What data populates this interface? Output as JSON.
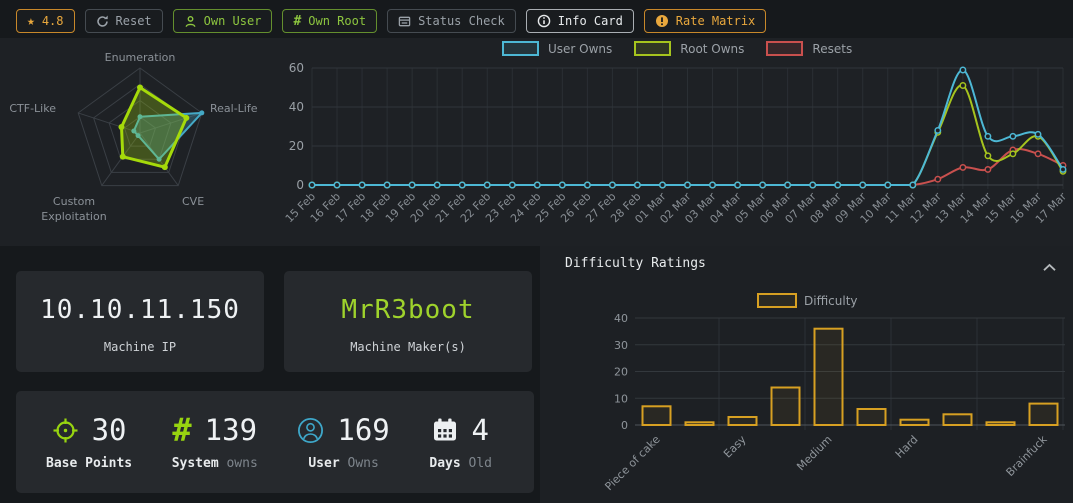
{
  "toolbar": {
    "rating": {
      "label": "4.8",
      "icon": "star-icon",
      "color": "orange"
    },
    "buttons": [
      {
        "label": "Reset",
        "icon": "refresh-icon",
        "color": "gray"
      },
      {
        "label": "Own User",
        "icon": "person-icon",
        "color": "green"
      },
      {
        "label": "Own Root",
        "icon": "hash-icon",
        "color": "green"
      },
      {
        "label": "Status Check",
        "icon": "list-icon",
        "color": "gray"
      },
      {
        "label": "Info Card",
        "icon": "info-icon",
        "color": "white"
      },
      {
        "label": "Rate Matrix",
        "icon": "alert-icon",
        "color": "orange"
      }
    ]
  },
  "cards": {
    "machine_ip": {
      "value": "10.10.11.150",
      "label": "Machine IP"
    },
    "machine_maker": {
      "value": "MrR3boot",
      "label": "Machine Maker(s)"
    }
  },
  "stats": [
    {
      "icon": "target-icon",
      "value": "30",
      "label": "Base Points",
      "sublabel": ""
    },
    {
      "icon": "hash-icon",
      "value": "139",
      "label": "System",
      "sublabel": "owns"
    },
    {
      "icon": "user-icon",
      "value": "169",
      "label": "User",
      "sublabel": "Owns"
    },
    {
      "icon": "calendar-icon",
      "value": "4",
      "label": "Days",
      "sublabel": "Old"
    }
  ],
  "difficulty_section": {
    "title": "Difficulty Ratings",
    "collapse_icon": "chevron-up-icon"
  },
  "chart_data": [
    {
      "type": "radar",
      "title": "Machine category radar",
      "categories": [
        "Enumeration",
        "Real-Life",
        "CVE",
        "Custom Exploitation",
        "CTF-Like"
      ],
      "max": 10,
      "series": [
        {
          "name": "User Owns",
          "color": "#44a9c6",
          "fill": "rgba(68,160,188,0.32)",
          "values": [
            2.5,
            10,
            5,
            0.5,
            1
          ]
        },
        {
          "name": "Root Owns",
          "color": "#a5da0a",
          "fill": "rgba(165,218,10,0.27)",
          "values": [
            7,
            7.5,
            6.5,
            4.5,
            3
          ]
        }
      ]
    },
    {
      "type": "line",
      "title": "Owns and resets per day",
      "x": [
        "15 Feb",
        "16 Feb",
        "17 Feb",
        "18 Feb",
        "19 Feb",
        "20 Feb",
        "21 Feb",
        "22 Feb",
        "23 Feb",
        "24 Feb",
        "25 Feb",
        "26 Feb",
        "27 Feb",
        "28 Feb",
        "01 Mar",
        "02 Mar",
        "03 Mar",
        "04 Mar",
        "05 Mar",
        "06 Mar",
        "07 Mar",
        "08 Mar",
        "09 Mar",
        "10 Mar",
        "11 Mar",
        "12 Mar",
        "13 Mar",
        "14 Mar",
        "15 Mar",
        "16 Mar",
        "17 Mar"
      ],
      "ylim": [
        0,
        60
      ],
      "yticks": [
        0,
        20,
        40,
        60
      ],
      "legend_position": "top",
      "grid": true,
      "series": [
        {
          "name": "User Owns",
          "color": "#4db8d5",
          "values": [
            0,
            0,
            0,
            0,
            0,
            0,
            0,
            0,
            0,
            0,
            0,
            0,
            0,
            0,
            0,
            0,
            0,
            0,
            0,
            0,
            0,
            0,
            0,
            0,
            0,
            28,
            59,
            25,
            25,
            26,
            8
          ]
        },
        {
          "name": "Root Owns",
          "color": "#a6c41e",
          "values": [
            0,
            0,
            0,
            0,
            0,
            0,
            0,
            0,
            0,
            0,
            0,
            0,
            0,
            0,
            0,
            0,
            0,
            0,
            0,
            0,
            0,
            0,
            0,
            0,
            0,
            27,
            51,
            15,
            16,
            25,
            7
          ]
        },
        {
          "name": "Resets",
          "color": "#c9504e",
          "values": [
            0,
            0,
            0,
            0,
            0,
            0,
            0,
            0,
            0,
            0,
            0,
            0,
            0,
            0,
            0,
            0,
            0,
            0,
            0,
            0,
            0,
            0,
            0,
            0,
            0,
            3,
            9,
            8,
            18,
            16,
            10
          ]
        }
      ]
    },
    {
      "type": "bar",
      "title": "Difficulty Ratings",
      "legend": "Difficulty",
      "color": "#d7a022",
      "categories": [
        "Piece of cake",
        "",
        "Easy",
        "",
        "Medium",
        "",
        "Hard",
        "",
        "",
        "Brainfuck"
      ],
      "values": [
        7,
        1,
        3,
        14,
        36,
        6,
        2,
        4,
        1,
        8
      ],
      "ylim": [
        0,
        40
      ],
      "yticks": [
        0,
        10,
        20,
        30,
        40
      ],
      "grid": true
    }
  ]
}
